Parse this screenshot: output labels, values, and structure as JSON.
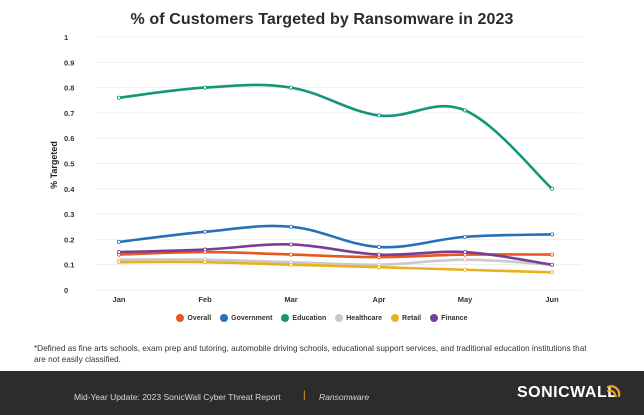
{
  "chart_data": {
    "type": "line",
    "title": "% of Customers Targeted by Ransomware in 2023",
    "xlabel": "",
    "ylabel": "% Targeted",
    "categories": [
      "Jan",
      "Feb",
      "Mar",
      "Apr",
      "May",
      "Jun"
    ],
    "ylim": [
      0,
      1
    ],
    "yticks": [
      "0",
      "0.1",
      "0.2",
      "0.3",
      "0.4",
      "0.5",
      "0.6",
      "0.7",
      "0.8",
      "0.9",
      "1"
    ],
    "grid": true,
    "legend_position": "bottom",
    "series": [
      {
        "name": "Overall",
        "color": "#e8571e",
        "values": [
          0.14,
          0.15,
          0.14,
          0.13,
          0.14,
          0.14
        ]
      },
      {
        "name": "Government",
        "color": "#2570b8",
        "values": [
          0.19,
          0.23,
          0.25,
          0.17,
          0.21,
          0.22
        ]
      },
      {
        "name": "Education",
        "color": "#15967a",
        "values": [
          0.76,
          0.8,
          0.8,
          0.69,
          0.71,
          0.4
        ]
      },
      {
        "name": "Healthcare",
        "color": "#c9c9c9",
        "values": [
          0.12,
          0.12,
          0.11,
          0.1,
          0.12,
          0.1
        ]
      },
      {
        "name": "Retail",
        "color": "#e7b21f",
        "values": [
          0.11,
          0.11,
          0.1,
          0.09,
          0.08,
          0.07
        ]
      },
      {
        "name": "Finance",
        "color": "#7b3d91",
        "values": [
          0.15,
          0.16,
          0.18,
          0.14,
          0.15,
          0.1
        ]
      }
    ]
  },
  "footnote": "*Defined as fine arts schools, exam prep and tutoring, automobile driving schools, educational support services, and traditional education institutions that are not easily classified.",
  "footer": {
    "report": "Mid-Year Update: 2023 SonicWall Cyber Threat Report",
    "separator": "|",
    "section": "Ransomware",
    "logo": "SONICWALL"
  },
  "colors": {
    "footer_bg": "#2c2c2c",
    "accent": "#f0a418"
  }
}
